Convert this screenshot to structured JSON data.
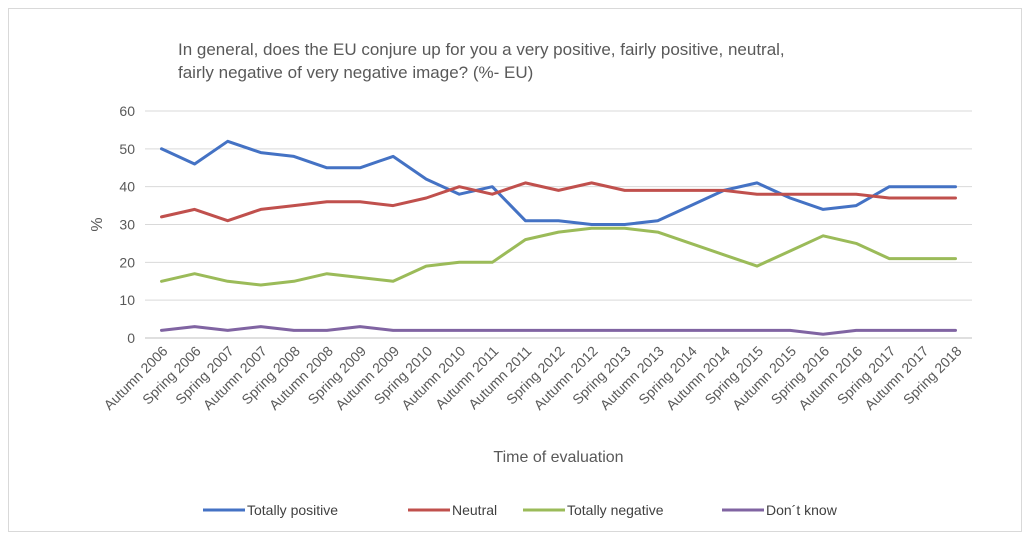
{
  "chart_data": {
    "type": "line",
    "title_lines": [
      "In general, does the EU conjure up for you a very positive, fairly positive, neutral,",
      "fairly negative of very negative image? (%- EU)"
    ],
    "xlabel": "Time of evaluation",
    "ylabel": "%",
    "ylim": [
      0,
      60
    ],
    "yticks": [
      0,
      10,
      20,
      30,
      40,
      50,
      60
    ],
    "grid": true,
    "legend_position": "bottom",
    "categories": [
      "Autumn 2006",
      "Spring 2006",
      "Spring 2007",
      "Autumn 2007",
      "Spring 2008",
      "Autumn 2008",
      "Spring 2009",
      "Autumn 2009",
      "Spring 2010",
      "Autumn 2010",
      "Autumn 2011",
      "Autumn 2011",
      "Spring 2012",
      "Autumn 2012",
      "Spring 2013",
      "Autumn 2013",
      "Spring 2014",
      "Autumn 2014",
      "Spring 2015",
      "Autumn 2015",
      "Spring 2016",
      "Autumn 2016",
      "Spring 2017",
      "Autumn 2017",
      "Spring 2018"
    ],
    "series": [
      {
        "name": "Totally positive",
        "color": "#4472c4",
        "values": [
          50,
          46,
          52,
          49,
          48,
          45,
          45,
          48,
          42,
          38,
          40,
          31,
          31,
          30,
          30,
          31,
          35,
          39,
          41,
          37,
          34,
          35,
          40,
          40,
          40
        ]
      },
      {
        "name": "Neutral",
        "color": "#c0504d",
        "values": [
          32,
          34,
          31,
          34,
          35,
          36,
          36,
          35,
          37,
          40,
          38,
          41,
          39,
          41,
          39,
          39,
          39,
          39,
          38,
          38,
          38,
          38,
          37,
          37,
          37
        ]
      },
      {
        "name": "Totally negative",
        "color": "#9bbb59",
        "values": [
          15,
          17,
          15,
          14,
          15,
          17,
          16,
          15,
          19,
          20,
          20,
          26,
          28,
          29,
          29,
          28,
          25,
          22,
          19,
          23,
          27,
          25,
          21,
          21,
          21
        ]
      },
      {
        "name": "Don´t know",
        "color": "#8064a2",
        "values": [
          2,
          3,
          2,
          3,
          2,
          2,
          3,
          2,
          2,
          2,
          2,
          2,
          2,
          2,
          2,
          2,
          2,
          2,
          2,
          2,
          1,
          2,
          2,
          2,
          2
        ]
      }
    ]
  }
}
